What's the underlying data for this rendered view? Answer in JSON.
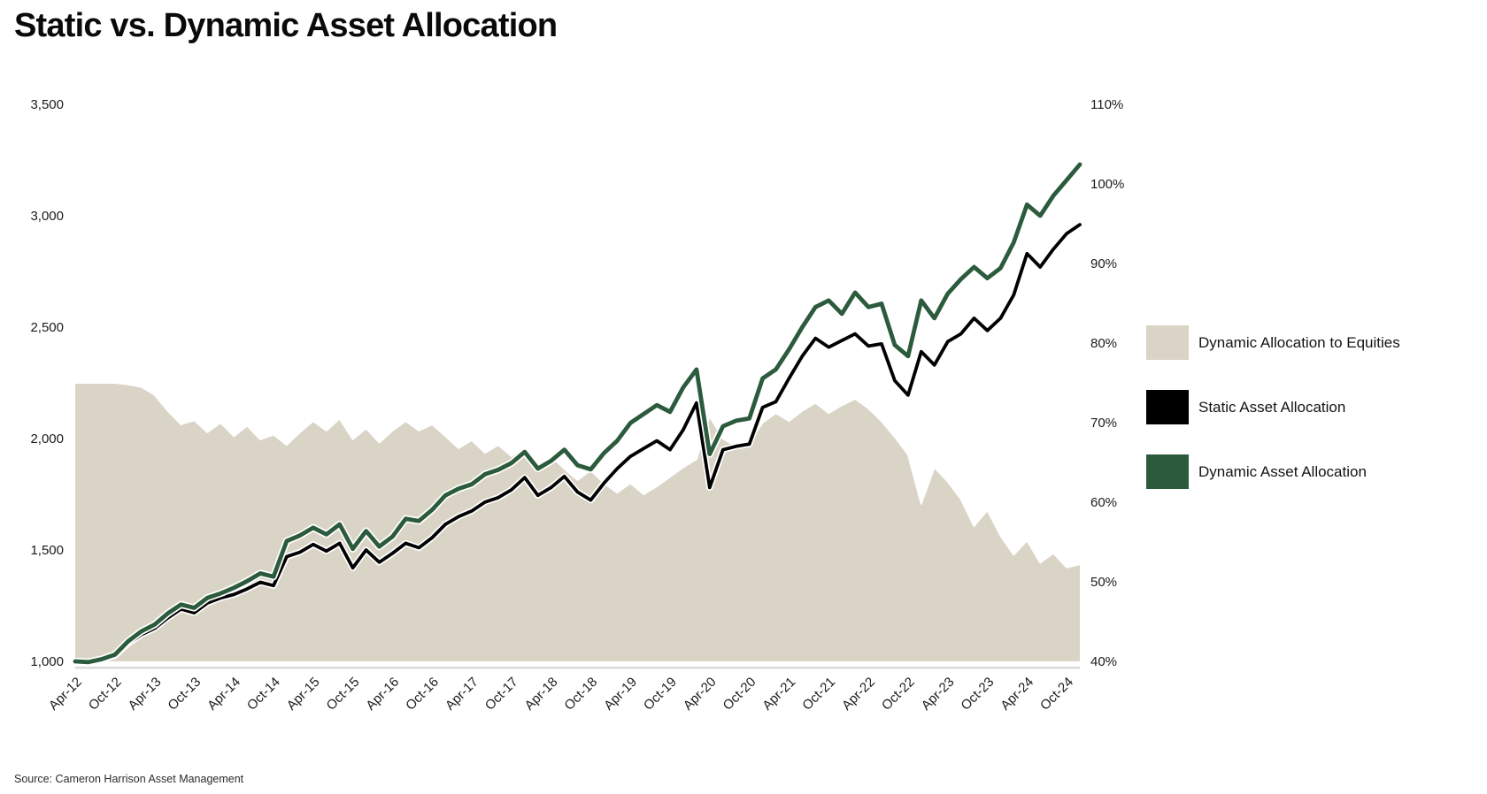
{
  "title": "Static vs. Dynamic Asset Allocation",
  "source": "Source: Cameron Harrison Asset Management",
  "colors": {
    "area": "#D9D4C6",
    "static_line": "#000000",
    "dynamic_line": "#2B5A3C",
    "axis_line": "#D9D9D9",
    "tick_text": "#1B1B1B",
    "background": "#FFFFFF"
  },
  "legend": [
    {
      "label": "Dynamic Allocation to Equities",
      "color": "#D9D4C6"
    },
    {
      "label": "Static Asset Allocation",
      "color": "#000000"
    },
    {
      "label": "Dynamic Asset Allocation",
      "color": "#2B5A3C"
    }
  ],
  "chart_data": {
    "type": "line",
    "subtype": "two index lines (left axis) + equity-allocation area (right axis)",
    "x_note": "samples every 2 months, Apr-2012 through Dec-2024; axis labels every 6 months",
    "x_tick_labels": [
      "Apr-12",
      "Oct-12",
      "Apr-13",
      "Oct-13",
      "Apr-14",
      "Oct-14",
      "Apr-15",
      "Oct-15",
      "Apr-16",
      "Oct-16",
      "Apr-17",
      "Oct-17",
      "Apr-18",
      "Oct-18",
      "Apr-19",
      "Oct-19",
      "Apr-20",
      "Oct-20",
      "Apr-21",
      "Oct-21",
      "Apr-22",
      "Oct-22",
      "Apr-23",
      "Oct-23",
      "Apr-24",
      "Oct-24"
    ],
    "x_ticks_every_n_points": 3,
    "left_axis": {
      "ticks": [
        "3,500",
        "3,000",
        "2,500",
        "2,000",
        "1,500",
        "1,000"
      ],
      "tick_values": [
        3500,
        3000,
        2500,
        2000,
        1500,
        1000
      ],
      "range": [
        1000,
        3500
      ]
    },
    "right_axis": {
      "ticks": [
        "110%",
        "100%",
        "90%",
        "80%",
        "70%",
        "60%",
        "50%",
        "40%"
      ],
      "tick_values": [
        110,
        100,
        90,
        80,
        70,
        60,
        50,
        40
      ],
      "range": [
        40,
        110
      ]
    },
    "grid": false,
    "legend_position": "right",
    "series": [
      {
        "name": "Dynamic Allocation to Equities",
        "type": "area",
        "axis": "right",
        "unit": "%",
        "color": "#D9D4C6",
        "values": [
          75,
          75,
          75,
          75,
          74.8,
          74.5,
          73.5,
          71.5,
          69.8,
          70.3,
          68.8,
          70,
          68.3,
          69.6,
          67.9,
          68.5,
          67.2,
          68.8,
          70.2,
          69,
          70.5,
          67.9,
          69.3,
          67.5,
          69,
          70.2,
          69,
          69.8,
          68.3,
          66.8,
          67.8,
          66.2,
          67.2,
          65.8,
          66.8,
          64.8,
          65.8,
          64.2,
          62.8,
          64,
          62.4,
          61.2,
          62.4,
          61,
          62,
          63.2,
          64.4,
          65.4,
          70.8,
          68,
          67,
          67.6,
          70,
          71.2,
          70.2,
          71.5,
          72.5,
          71.2,
          72.2,
          73,
          71.8,
          70.2,
          68.2,
          66,
          59.8,
          64.4,
          62.6,
          60.4,
          57,
          59,
          55.8,
          53.4,
          55.2,
          52.4,
          53.6,
          51.8,
          52.2
        ]
      },
      {
        "name": "Static Asset Allocation",
        "type": "line",
        "axis": "left",
        "unit": "index (start = 1,000)",
        "color": "#000000",
        "values": [
          1000,
          996,
          1007,
          1025,
          1080,
          1120,
          1148,
          1195,
          1235,
          1218,
          1262,
          1285,
          1300,
          1325,
          1355,
          1340,
          1470,
          1490,
          1525,
          1495,
          1530,
          1420,
          1500,
          1445,
          1485,
          1530,
          1510,
          1555,
          1615,
          1650,
          1675,
          1715,
          1735,
          1770,
          1825,
          1745,
          1780,
          1830,
          1760,
          1724,
          1800,
          1865,
          1920,
          1955,
          1990,
          1950,
          2040,
          2160,
          1780,
          1950,
          1965,
          1975,
          2140,
          2165,
          2270,
          2370,
          2450,
          2410,
          2440,
          2470,
          2415,
          2425,
          2260,
          2195,
          2390,
          2330,
          2435,
          2470,
          2540,
          2485,
          2540,
          2645,
          2830,
          2770,
          2850,
          2920,
          2960
        ]
      },
      {
        "name": "Dynamic Asset Allocation",
        "type": "line",
        "axis": "left",
        "unit": "index (start = 1,000)",
        "color": "#2B5A3C",
        "values": [
          1000,
          997,
          1010,
          1030,
          1090,
          1135,
          1165,
          1215,
          1255,
          1240,
          1285,
          1305,
          1330,
          1360,
          1395,
          1380,
          1540,
          1565,
          1600,
          1570,
          1615,
          1505,
          1585,
          1515,
          1560,
          1640,
          1630,
          1680,
          1745,
          1775,
          1795,
          1840,
          1860,
          1890,
          1940,
          1865,
          1900,
          1950,
          1880,
          1862,
          1935,
          1990,
          2070,
          2110,
          2150,
          2120,
          2230,
          2310,
          1930,
          2055,
          2080,
          2090,
          2270,
          2310,
          2400,
          2500,
          2590,
          2620,
          2560,
          2655,
          2590,
          2605,
          2420,
          2370,
          2620,
          2540,
          2650,
          2715,
          2770,
          2720,
          2765,
          2880,
          3050,
          3000,
          3090,
          3160,
          3230
        ]
      }
    ]
  }
}
